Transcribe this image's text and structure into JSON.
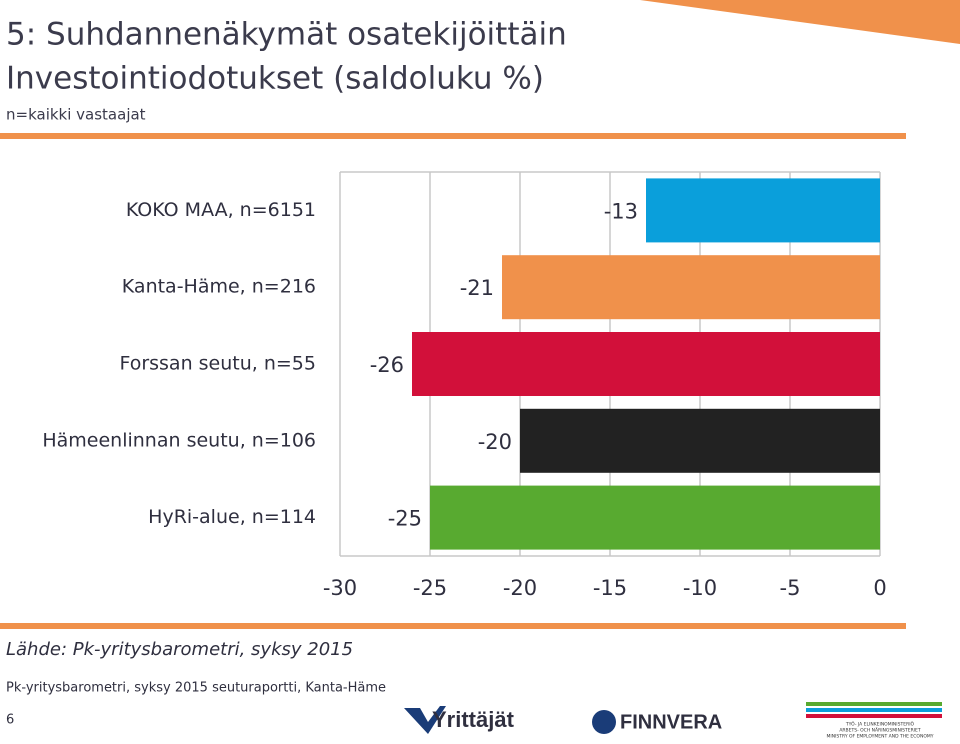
{
  "slide": {
    "title_line1": "5: Suhdannenäkymät osatekijöittäin",
    "title_line2": "Investointiodotukset (saldoluku %)",
    "subtitle": "n=kaikki vastaajat",
    "source": "Lähde: Pk-yritysbarometri, syksy 2015",
    "footer": "Pk-yritysbarometri, syksy 2015 seuturaportti, Kanta-Häme",
    "page_number": "6",
    "logo_yrittajat": "Yrittäjät",
    "logo_finnvera": "FINNVERA",
    "ministry_fi": "TYÖ- JA ELINKEINOMINISTERIÖ",
    "ministry_sv": "ARBETS- OCH NÄRINGSMINISTERIET",
    "ministry_en": "MINISTRY OF EMPLOYMENT AND THE ECONOMY"
  },
  "chart_data": {
    "type": "hbar",
    "categories": [
      "KOKO MAA, n=6151",
      "Kanta-Häme, n=216",
      "Forssan seutu, n=55",
      "Hämeenlinnan seutu, n=106",
      "HyRi-alue, n=114"
    ],
    "values": [
      -13,
      -21,
      -26,
      -20,
      -25
    ],
    "colors": [
      "#0a9fdb",
      "#f0914b",
      "#d2103a",
      "#222222",
      "#58aa30"
    ],
    "xlim": [
      -30,
      0
    ],
    "xticks": [
      -30,
      -25,
      -20,
      -15,
      -10,
      -5,
      0
    ],
    "grid": true
  }
}
